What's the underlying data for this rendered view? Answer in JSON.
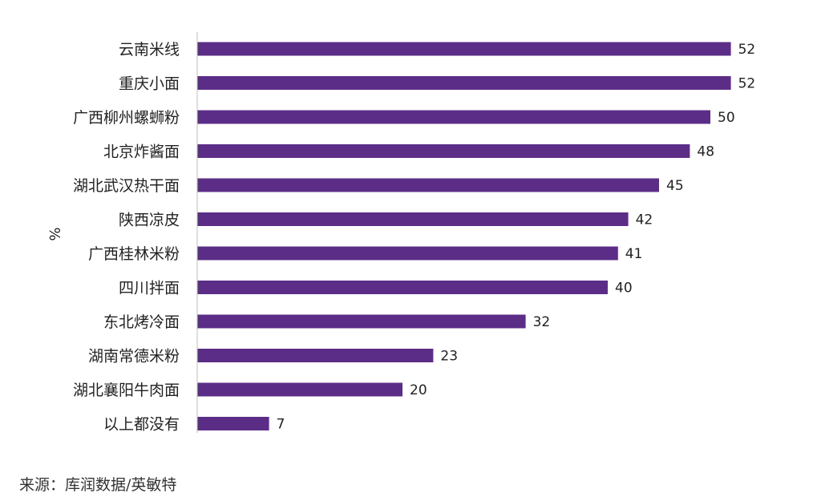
{
  "source": "来源：库润数据/英敏特",
  "colors": {
    "bar": "#5c2d86",
    "axis": "#bfbfbf",
    "text": "#222222"
  },
  "chart_data": {
    "type": "bar",
    "orientation": "horizontal",
    "ylabel": "%",
    "xlim": [
      0,
      60
    ],
    "grid": false,
    "legend": "none",
    "categories": [
      "云南米线",
      "重庆小面",
      "广西柳州螺蛳粉",
      "北京炸酱面",
      "湖北武汉热干面",
      "陕西凉皮",
      "广西桂林米粉",
      "四川拌面",
      "东北烤冷面",
      "湖南常德米粉",
      "湖北襄阳牛肉面",
      "以上都没有"
    ],
    "values": [
      52,
      52,
      50,
      48,
      45,
      42,
      41,
      40,
      32,
      23,
      20,
      7
    ]
  }
}
